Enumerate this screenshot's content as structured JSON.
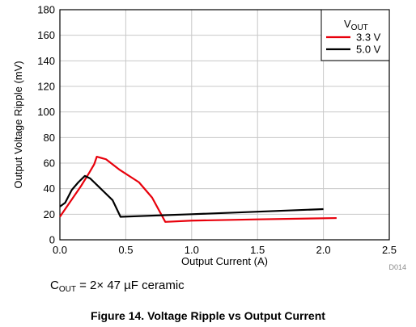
{
  "chart_data": {
    "type": "line",
    "xlabel": "Output Current (A)",
    "ylabel": "Output Voltage Ripple (mV)",
    "xlim": [
      0,
      2.5
    ],
    "ylim": [
      0,
      180
    ],
    "xticks": [
      "0.0",
      "0.5",
      "1.0",
      "1.5",
      "2.0",
      "2.5"
    ],
    "yticks": [
      "0",
      "20",
      "40",
      "60",
      "80",
      "100",
      "120",
      "140",
      "160",
      "180"
    ],
    "grid": true,
    "legend_position": "top-right",
    "legend_title": {
      "main": "V",
      "sub": "OUT"
    },
    "series": [
      {
        "name": "3.3 V",
        "color": "#e8000b",
        "x": [
          0.0,
          0.08,
          0.16,
          0.22,
          0.26,
          0.28,
          0.35,
          0.45,
          0.6,
          0.7,
          0.8,
          1.0,
          1.5,
          2.1
        ],
        "y": [
          18,
          30,
          42,
          52,
          59,
          65,
          63,
          55,
          45,
          33,
          14,
          15,
          16,
          17
        ]
      },
      {
        "name": "5.0 V",
        "color": "#000000",
        "x": [
          0.0,
          0.04,
          0.09,
          0.14,
          0.19,
          0.23,
          0.3,
          0.4,
          0.46,
          1.0,
          1.5,
          2.0
        ],
        "y": [
          26,
          29,
          39,
          45,
          50,
          48,
          41,
          31,
          18,
          20,
          22,
          24
        ]
      }
    ],
    "code": "D014"
  },
  "note": {
    "prefix": "C",
    "sub": "OUT",
    "text": " = 2× 47 µF ceramic"
  },
  "caption": "Figure 14. Voltage Ripple vs Output Current"
}
